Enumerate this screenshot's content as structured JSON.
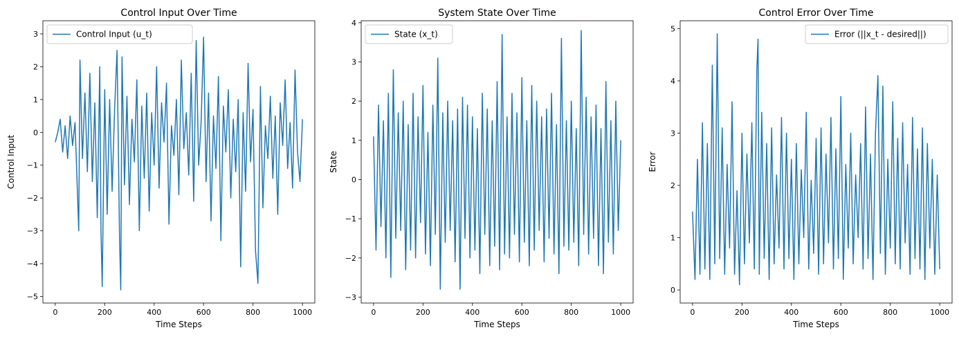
{
  "chart_data": [
    {
      "type": "line",
      "title": "Control Input Over Time",
      "xlabel": "Time Steps",
      "ylabel": "Control Input",
      "xlim": [
        -50,
        1050
      ],
      "ylim": [
        -5.2,
        3.4
      ],
      "xticks": [
        0,
        200,
        400,
        600,
        800,
        1000
      ],
      "yticks": [
        -5,
        -4,
        -3,
        -2,
        -1,
        0,
        1,
        2,
        3
      ],
      "legend_position": "top-left",
      "color": "#1f77b4",
      "series": [
        {
          "name": "Control Input (u_t)",
          "x": [
            0,
            10,
            20,
            30,
            40,
            50,
            60,
            70,
            80,
            90,
            95,
            100,
            110,
            120,
            130,
            140,
            150,
            160,
            170,
            180,
            185,
            190,
            200,
            210,
            220,
            230,
            240,
            250,
            260,
            265,
            270,
            280,
            290,
            300,
            310,
            320,
            330,
            340,
            350,
            360,
            370,
            380,
            390,
            400,
            410,
            420,
            430,
            440,
            450,
            460,
            470,
            480,
            490,
            500,
            510,
            520,
            530,
            540,
            550,
            560,
            570,
            580,
            590,
            600,
            610,
            620,
            630,
            640,
            650,
            660,
            670,
            680,
            690,
            700,
            710,
            720,
            730,
            740,
            750,
            760,
            770,
            780,
            790,
            800,
            810,
            820,
            830,
            840,
            850,
            860,
            870,
            880,
            890,
            900,
            910,
            920,
            930,
            940,
            950,
            960,
            970,
            980,
            990,
            1000
          ],
          "values": [
            -0.3,
            0.0,
            0.4,
            -0.6,
            0.2,
            -0.8,
            0.5,
            -0.4,
            0.3,
            -1.9,
            -3.0,
            2.2,
            -0.8,
            1.2,
            -1.2,
            1.8,
            -1.5,
            0.9,
            -2.6,
            2.0,
            -3.0,
            -4.7,
            1.3,
            -2.5,
            1.0,
            -1.8,
            0.7,
            2.5,
            -3.2,
            -4.8,
            2.3,
            -1.6,
            1.1,
            -2.2,
            0.4,
            -0.9,
            1.6,
            -3.0,
            0.8,
            -1.4,
            1.2,
            -2.4,
            0.6,
            -1.0,
            2.0,
            -1.7,
            0.9,
            -0.3,
            1.5,
            -2.8,
            0.2,
            -0.7,
            1.0,
            -1.9,
            2.2,
            -0.5,
            0.6,
            -1.3,
            1.8,
            -2.1,
            2.8,
            -1.0,
            0.3,
            2.9,
            -1.5,
            1.2,
            -2.7,
            0.5,
            -1.1,
            1.7,
            -3.3,
            0.8,
            -0.6,
            1.3,
            -2.0,
            0.4,
            -1.2,
            1.0,
            -4.1,
            0.6,
            -1.8,
            2.1,
            -0.9,
            0.7,
            -3.6,
            -4.6,
            1.4,
            -2.3,
            0.2,
            -0.8,
            1.1,
            -1.4,
            0.5,
            -2.5,
            0.9,
            -0.4,
            1.6,
            -1.1,
            0.3,
            -1.7,
            1.9,
            -0.6,
            -1.5,
            0.4
          ]
        }
      ]
    },
    {
      "type": "line",
      "title": "System State Over Time",
      "xlabel": "Time Steps",
      "ylabel": "State",
      "xlim": [
        -50,
        1050
      ],
      "ylim": [
        -3.15,
        4.05
      ],
      "xticks": [
        0,
        200,
        400,
        600,
        800,
        1000
      ],
      "yticks": [
        -3,
        -2,
        -1,
        0,
        1,
        2,
        3,
        4
      ],
      "legend_position": "top-left",
      "color": "#1f77b4",
      "series": [
        {
          "name": "State (x_t)",
          "x": [
            0,
            10,
            20,
            30,
            40,
            50,
            60,
            70,
            80,
            90,
            100,
            110,
            120,
            130,
            140,
            150,
            160,
            170,
            180,
            190,
            200,
            210,
            220,
            230,
            240,
            250,
            260,
            270,
            280,
            290,
            300,
            310,
            320,
            330,
            340,
            350,
            360,
            370,
            380,
            390,
            400,
            410,
            420,
            430,
            440,
            450,
            460,
            470,
            480,
            490,
            500,
            510,
            520,
            530,
            540,
            550,
            560,
            570,
            580,
            590,
            600,
            610,
            620,
            630,
            640,
            650,
            660,
            670,
            680,
            690,
            700,
            710,
            720,
            730,
            740,
            750,
            760,
            770,
            780,
            790,
            800,
            810,
            820,
            830,
            840,
            850,
            860,
            870,
            880,
            890,
            900,
            910,
            920,
            930,
            940,
            950,
            960,
            970,
            980,
            990,
            1000
          ],
          "values": [
            1.1,
            -1.8,
            1.9,
            -1.2,
            1.5,
            -2.0,
            2.2,
            -2.5,
            2.8,
            -1.5,
            1.7,
            -1.3,
            2.0,
            -2.3,
            1.4,
            -1.8,
            2.2,
            -2.0,
            1.6,
            -1.1,
            2.4,
            -1.9,
            1.2,
            -2.2,
            1.9,
            -1.4,
            3.1,
            -2.8,
            1.7,
            -1.6,
            2.0,
            -1.3,
            1.5,
            -2.1,
            1.8,
            -2.8,
            2.1,
            -1.5,
            1.9,
            -2.0,
            1.6,
            -1.8,
            1.3,
            -2.4,
            2.2,
            -1.4,
            1.8,
            -2.2,
            1.5,
            -1.7,
            2.5,
            -2.3,
            3.7,
            -1.9,
            1.6,
            -2.0,
            2.2,
            -1.4,
            1.7,
            -2.1,
            2.6,
            -1.6,
            1.5,
            -2.2,
            2.4,
            -1.8,
            2.0,
            -1.3,
            1.6,
            -2.1,
            1.8,
            -1.5,
            2.2,
            -1.9,
            1.4,
            -2.4,
            3.6,
            -1.7,
            1.5,
            -1.8,
            2.0,
            -1.6,
            1.3,
            -2.2,
            3.8,
            -1.4,
            2.1,
            -1.9,
            1.6,
            -1.5,
            1.9,
            -2.2,
            1.3,
            -2.4,
            2.5,
            -1.6,
            1.5,
            -1.9,
            2.0,
            -1.3,
            1.0
          ]
        }
      ]
    },
    {
      "type": "line",
      "title": "Control Error Over Time",
      "xlabel": "Time Steps",
      "ylabel": "Error",
      "xlim": [
        -50,
        1050
      ],
      "ylim": [
        -0.25,
        5.15
      ],
      "xticks": [
        0,
        200,
        400,
        600,
        800,
        1000
      ],
      "yticks": [
        0,
        1,
        2,
        3,
        4,
        5
      ],
      "legend_position": "top-right",
      "color": "#1f77b4",
      "series": [
        {
          "name": "Error (||x_t - desired||)",
          "x": [
            0,
            10,
            20,
            30,
            40,
            50,
            60,
            70,
            80,
            90,
            100,
            110,
            120,
            130,
            140,
            150,
            160,
            170,
            180,
            190,
            200,
            210,
            220,
            230,
            240,
            250,
            260,
            265,
            270,
            280,
            290,
            300,
            310,
            320,
            330,
            340,
            350,
            360,
            370,
            380,
            390,
            400,
            410,
            420,
            430,
            440,
            450,
            460,
            470,
            480,
            490,
            500,
            510,
            520,
            530,
            540,
            550,
            560,
            570,
            580,
            590,
            600,
            610,
            620,
            630,
            640,
            650,
            660,
            670,
            680,
            690,
            700,
            710,
            720,
            730,
            740,
            750,
            760,
            770,
            780,
            790,
            800,
            810,
            820,
            830,
            840,
            850,
            860,
            870,
            880,
            890,
            900,
            910,
            920,
            930,
            940,
            950,
            960,
            970,
            980,
            990,
            1000
          ],
          "values": [
            1.5,
            0.2,
            2.5,
            0.3,
            3.2,
            0.4,
            2.8,
            0.2,
            4.3,
            0.5,
            4.9,
            0.6,
            3.1,
            0.3,
            2.4,
            0.8,
            3.6,
            0.3,
            1.9,
            0.1,
            3.0,
            0.5,
            2.6,
            0.9,
            3.2,
            0.4,
            4.2,
            4.8,
            0.3,
            3.4,
            0.6,
            2.8,
            0.2,
            3.1,
            0.5,
            2.2,
            0.8,
            3.3,
            0.4,
            3.0,
            0.6,
            2.5,
            0.2,
            2.8,
            0.5,
            2.3,
            1.0,
            3.4,
            0.4,
            2.1,
            0.7,
            2.9,
            0.3,
            3.1,
            0.5,
            2.6,
            0.9,
            3.3,
            0.4,
            2.7,
            0.6,
            3.7,
            0.2,
            2.4,
            0.8,
            3.0,
            0.5,
            2.2,
            1.0,
            2.8,
            0.4,
            3.5,
            0.6,
            2.6,
            0.2,
            3.0,
            4.1,
            0.7,
            3.9,
            0.3,
            2.5,
            0.8,
            3.6,
            0.5,
            2.9,
            0.4,
            3.2,
            0.9,
            2.4,
            0.3,
            3.3,
            0.6,
            2.7,
            0.4,
            3.1,
            0.2,
            2.8,
            0.8,
            2.5,
            0.3,
            2.2,
            0.4
          ]
        }
      ]
    }
  ]
}
